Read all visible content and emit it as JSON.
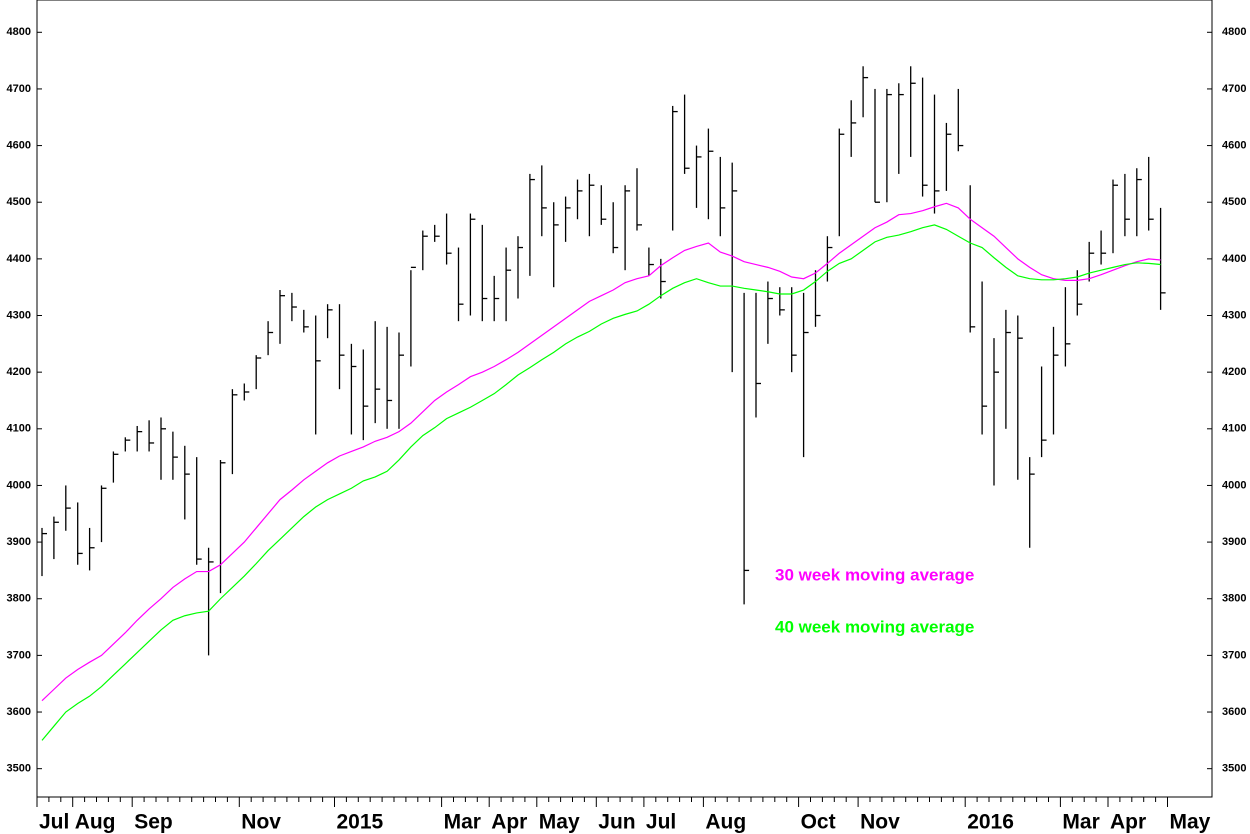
{
  "chart_data": {
    "type": "ohlc",
    "categories": [
      "Jul",
      null,
      null,
      "Aug",
      null,
      null,
      null,
      null,
      "Sep",
      null,
      null,
      null,
      null,
      null,
      null,
      null,
      null,
      "Nov",
      null,
      null,
      null,
      null,
      null,
      null,
      null,
      "2015",
      null,
      null,
      null,
      null,
      null,
      null,
      null,
      null,
      "Mar",
      null,
      null,
      null,
      "Apr",
      null,
      null,
      null,
      "May",
      null,
      null,
      null,
      null,
      "Jun",
      null,
      null,
      null,
      "Jul",
      null,
      null,
      null,
      null,
      "Aug",
      null,
      null,
      null,
      null,
      null,
      null,
      null,
      "Oct",
      null,
      null,
      null,
      null,
      "Nov",
      null,
      null,
      null,
      null,
      null,
      null,
      null,
      null,
      "2016",
      null,
      null,
      null,
      null,
      null,
      null,
      null,
      "Mar",
      null,
      null,
      null,
      "Apr",
      null,
      null,
      null,
      null,
      "May"
    ],
    "high": [
      3925,
      3945,
      4000,
      3970,
      3925,
      4000,
      4060,
      4085,
      4105,
      4115,
      4120,
      4095,
      4070,
      4050,
      3890,
      4045,
      4170,
      4180,
      4230,
      4290,
      4345,
      4340,
      4310,
      4300,
      4320,
      4320,
      4250,
      4240,
      4290,
      4280,
      4270,
      4380,
      4450,
      4460,
      4480,
      4420,
      4480,
      4460,
      4370,
      4420,
      4440,
      4550,
      4565,
      4500,
      4510,
      4540,
      4550,
      4530,
      4500,
      4530,
      4560,
      4420,
      4400,
      4670,
      4690,
      4600,
      4630,
      4580,
      4570,
      4340,
      4340,
      4360,
      4350,
      4350,
      4340,
      4380,
      4440,
      4630,
      4680,
      4740,
      4700,
      4700,
      4710,
      4740,
      4720,
      4690,
      4640,
      4700,
      4530,
      4360,
      4260,
      4310,
      4300,
      4050,
      4210,
      4280,
      4350,
      4380,
      4430,
      4450,
      4540,
      4550,
      4560,
      4580,
      4490,
      null
    ],
    "low": [
      3840,
      3870,
      3920,
      3860,
      3850,
      3900,
      4005,
      4060,
      4060,
      4060,
      4010,
      4010,
      3940,
      3860,
      3700,
      3810,
      4020,
      4150,
      4170,
      4230,
      4250,
      4290,
      4270,
      4090,
      4260,
      4170,
      4090,
      4080,
      4110,
      4100,
      4100,
      4210,
      4380,
      4430,
      4390,
      4290,
      4300,
      4290,
      4290,
      4290,
      4330,
      4370,
      4440,
      4350,
      4430,
      4470,
      4440,
      4460,
      4410,
      4380,
      4450,
      4370,
      4330,
      4450,
      4550,
      4490,
      4470,
      4440,
      4200,
      3790,
      4120,
      4250,
      4300,
      4200,
      4050,
      4280,
      4360,
      4440,
      4580,
      4650,
      4500,
      4500,
      4550,
      4580,
      4510,
      4480,
      4520,
      4590,
      4270,
      4090,
      4000,
      4100,
      4010,
      3890,
      4050,
      4090,
      4210,
      4300,
      4360,
      4390,
      4410,
      4440,
      4440,
      4450,
      4310,
      null
    ],
    "close": [
      3915,
      3935,
      3960,
      3880,
      3890,
      3995,
      4055,
      4080,
      4095,
      4075,
      4100,
      4050,
      4020,
      3870,
      3865,
      4040,
      4160,
      4165,
      4225,
      4270,
      4335,
      4315,
      4280,
      4220,
      4310,
      4230,
      4210,
      4140,
      4170,
      4150,
      4230,
      4385,
      4440,
      4440,
      4410,
      4320,
      4470,
      4330,
      4330,
      4380,
      4420,
      4540,
      4490,
      4460,
      4490,
      4520,
      4530,
      4470,
      4420,
      4520,
      4460,
      4390,
      4360,
      4660,
      4560,
      4580,
      4590,
      4490,
      4520,
      3850,
      4180,
      4330,
      4310,
      4230,
      4270,
      4300,
      4420,
      4620,
      4640,
      4720,
      4500,
      4690,
      4690,
      4710,
      4530,
      4520,
      4620,
      4600,
      4280,
      4140,
      4200,
      4270,
      4260,
      4020,
      4080,
      4230,
      4250,
      4320,
      4410,
      4410,
      4530,
      4470,
      4540,
      4470,
      4340,
      null
    ],
    "bar_color": "#000000",
    "series": [
      {
        "name": "30 week moving average",
        "color": "#ff00ff",
        "values": [
          3620,
          3640,
          3660,
          3675,
          3688,
          3700,
          3720,
          3740,
          3762,
          3782,
          3800,
          3820,
          3835,
          3848,
          3848,
          3860,
          3880,
          3900,
          3925,
          3950,
          3975,
          3992,
          4010,
          4025,
          4040,
          4052,
          4060,
          4068,
          4078,
          4085,
          4095,
          4110,
          4130,
          4150,
          4165,
          4178,
          4192,
          4200,
          4210,
          4222,
          4235,
          4250,
          4265,
          4280,
          4295,
          4310,
          4325,
          4335,
          4345,
          4358,
          4365,
          4370,
          4388,
          4402,
          4415,
          4422,
          4428,
          4412,
          4405,
          4395,
          4390,
          4385,
          4378,
          4368,
          4365,
          4375,
          4392,
          4410,
          4425,
          4440,
          4455,
          4465,
          4478,
          4480,
          4485,
          4492,
          4498,
          4490,
          4470,
          4455,
          4440,
          4420,
          4400,
          4385,
          4372,
          4365,
          4362,
          4362,
          4365,
          4372,
          4380,
          4388,
          4395,
          4400,
          4398,
          null
        ]
      },
      {
        "name": "40 week moving average",
        "color": "#00ff00",
        "values": [
          3550,
          3575,
          3600,
          3615,
          3628,
          3645,
          3665,
          3685,
          3705,
          3725,
          3745,
          3762,
          3770,
          3775,
          3778,
          3800,
          3820,
          3840,
          3862,
          3885,
          3905,
          3925,
          3945,
          3962,
          3975,
          3985,
          3995,
          4008,
          4015,
          4025,
          4045,
          4068,
          4088,
          4102,
          4118,
          4128,
          4138,
          4150,
          4162,
          4178,
          4195,
          4208,
          4222,
          4235,
          4250,
          4262,
          4272,
          4285,
          4295,
          4302,
          4308,
          4320,
          4335,
          4348,
          4358,
          4365,
          4358,
          4352,
          4352,
          4348,
          4345,
          4342,
          4338,
          4338,
          4345,
          4360,
          4378,
          4392,
          4400,
          4415,
          4430,
          4438,
          4442,
          4448,
          4455,
          4460,
          4452,
          4440,
          4428,
          4420,
          4402,
          4385,
          4370,
          4365,
          4363,
          4363,
          4365,
          4368,
          4375,
          4380,
          4385,
          4390,
          4393,
          4392,
          4390,
          null
        ]
      }
    ],
    "ylim": [
      3450,
      4857
    ],
    "yticks": [
      3500,
      3600,
      3700,
      3800,
      3900,
      4000,
      4100,
      4200,
      4300,
      4400,
      4500,
      4600,
      4700,
      4800
    ]
  }
}
